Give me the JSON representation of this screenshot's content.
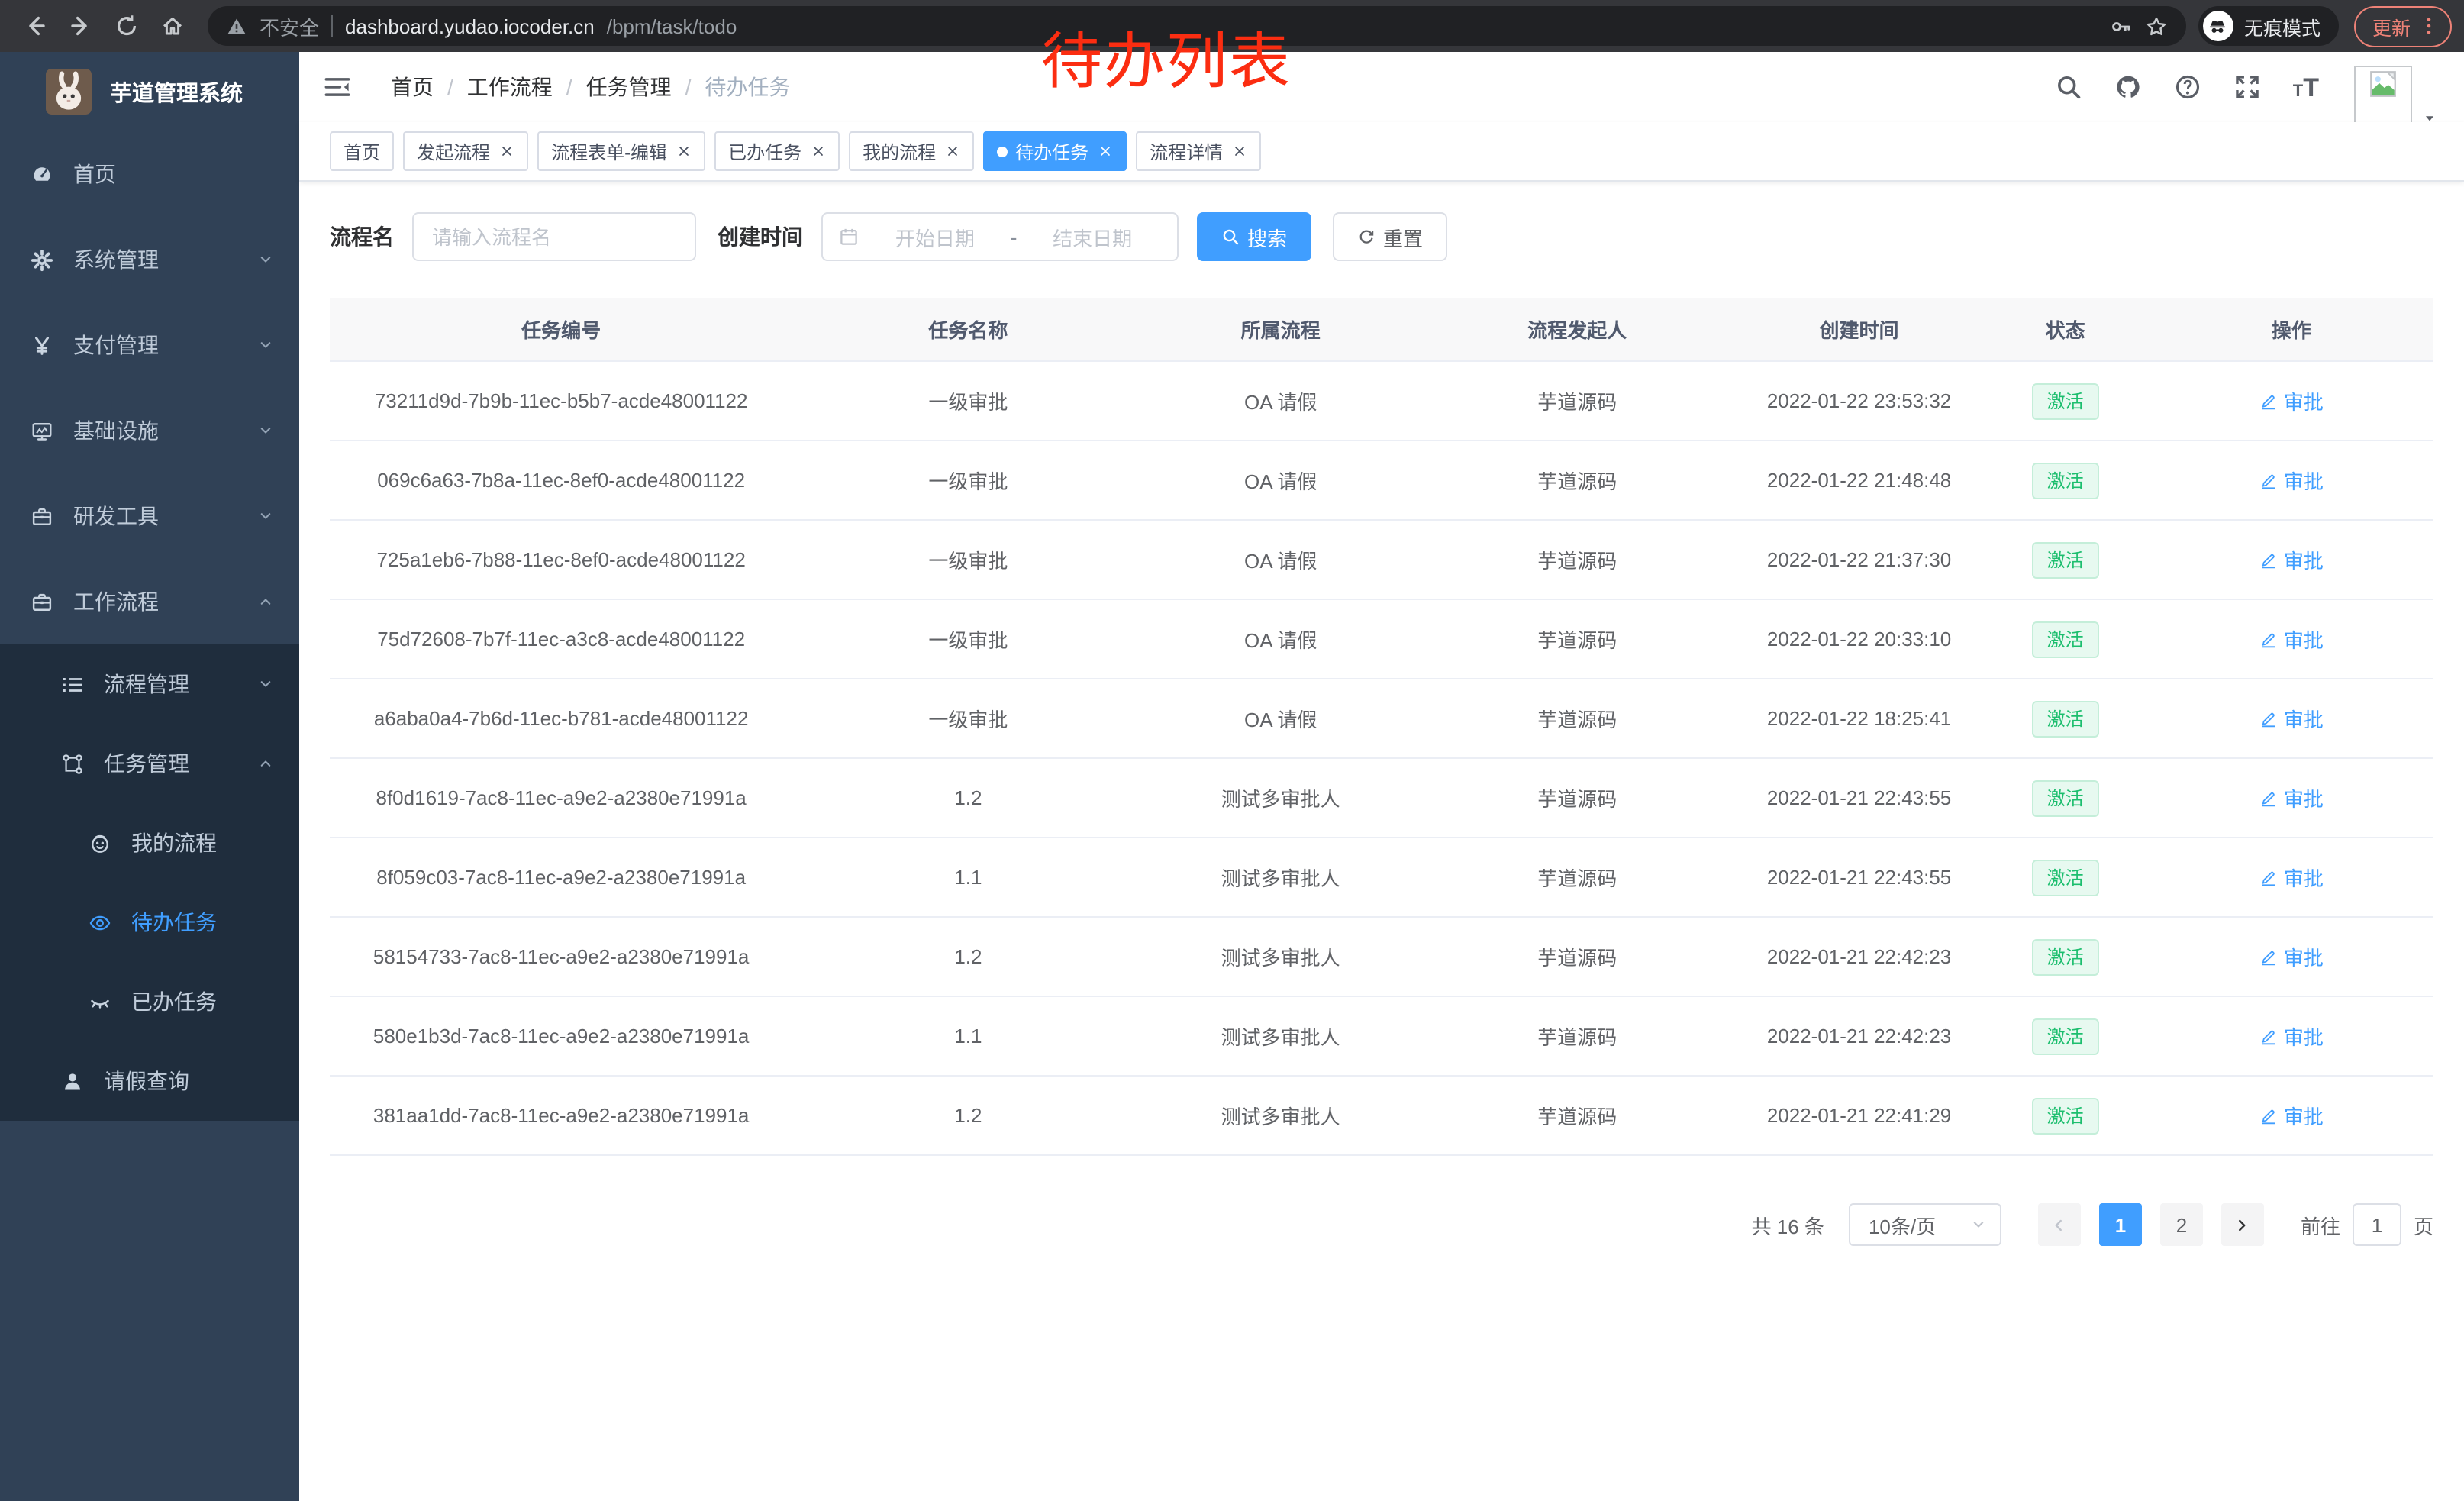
{
  "browser": {
    "security_label": "不安全",
    "url_host": "dashboard.yudao.iocoder.cn",
    "url_path": "/bpm/task/todo",
    "incognito_label": "无痕模式",
    "update_label": "更新"
  },
  "annotation": {
    "text": "待办列表",
    "color": "#fb2d11"
  },
  "sidebar": {
    "title": "芋道管理系统",
    "menu": [
      {
        "label": "首页",
        "icon": "dashboard",
        "chevron": ""
      },
      {
        "label": "系统管理",
        "icon": "gear",
        "chevron": "down"
      },
      {
        "label": "支付管理",
        "icon": "yen",
        "chevron": "down"
      },
      {
        "label": "基础设施",
        "icon": "monitor",
        "chevron": "down"
      },
      {
        "label": "研发工具",
        "icon": "briefcase",
        "chevron": "down"
      },
      {
        "label": "工作流程",
        "icon": "briefcase",
        "chevron": "up"
      }
    ],
    "submenu": [
      {
        "label": "流程管理",
        "icon": "list",
        "level": 2,
        "chevron": "down",
        "active": false
      },
      {
        "label": "任务管理",
        "icon": "flow",
        "level": 2,
        "chevron": "up",
        "active": false
      },
      {
        "label": "我的流程",
        "icon": "face",
        "level": 3,
        "chevron": "",
        "active": false
      },
      {
        "label": "待办任务",
        "icon": "eye",
        "level": 3,
        "chevron": "",
        "active": true
      },
      {
        "label": "已办任务",
        "icon": "eyeclosed",
        "level": 3,
        "chevron": "",
        "active": false
      },
      {
        "label": "请假查询",
        "icon": "user",
        "level": 2,
        "chevron": "",
        "active": false
      }
    ]
  },
  "header": {
    "breadcrumb": [
      {
        "label": "首页",
        "current": false
      },
      {
        "label": "工作流程",
        "current": false
      },
      {
        "label": "任务管理",
        "current": false
      },
      {
        "label": "待办任务",
        "current": true
      }
    ],
    "breadcrumb_separator": "/"
  },
  "tabs": [
    {
      "label": "首页",
      "closable": false,
      "active": false
    },
    {
      "label": "发起流程",
      "closable": true,
      "active": false
    },
    {
      "label": "流程表单-编辑",
      "closable": true,
      "active": false
    },
    {
      "label": "已办任务",
      "closable": true,
      "active": false
    },
    {
      "label": "我的流程",
      "closable": true,
      "active": false
    },
    {
      "label": "待办任务",
      "closable": true,
      "active": true
    },
    {
      "label": "流程详情",
      "closable": true,
      "active": false
    }
  ],
  "filters": {
    "name_label": "流程名",
    "name_placeholder": "请输入流程名",
    "time_label": "创建时间",
    "start_placeholder": "开始日期",
    "separator": "-",
    "end_placeholder": "结束日期",
    "search_label": "搜索",
    "reset_label": "重置"
  },
  "table": {
    "columns": [
      "任务编号",
      "任务名称",
      "所属流程",
      "流程发起人",
      "创建时间",
      "状态",
      "操作"
    ],
    "rows": [
      {
        "id": "73211d9d-7b9b-11ec-b5b7-acde48001122",
        "name": "一级审批",
        "process": "OA 请假",
        "starter": "芋道源码",
        "time": "2022-01-22 23:53:32",
        "status": "激活",
        "action": "审批"
      },
      {
        "id": "069c6a63-7b8a-11ec-8ef0-acde48001122",
        "name": "一级审批",
        "process": "OA 请假",
        "starter": "芋道源码",
        "time": "2022-01-22 21:48:48",
        "status": "激活",
        "action": "审批"
      },
      {
        "id": "725a1eb6-7b88-11ec-8ef0-acde48001122",
        "name": "一级审批",
        "process": "OA 请假",
        "starter": "芋道源码",
        "time": "2022-01-22 21:37:30",
        "status": "激活",
        "action": "审批"
      },
      {
        "id": "75d72608-7b7f-11ec-a3c8-acde48001122",
        "name": "一级审批",
        "process": "OA 请假",
        "starter": "芋道源码",
        "time": "2022-01-22 20:33:10",
        "status": "激活",
        "action": "审批"
      },
      {
        "id": "a6aba0a4-7b6d-11ec-b781-acde48001122",
        "name": "一级审批",
        "process": "OA 请假",
        "starter": "芋道源码",
        "time": "2022-01-22 18:25:41",
        "status": "激活",
        "action": "审批"
      },
      {
        "id": "8f0d1619-7ac8-11ec-a9e2-a2380e71991a",
        "name": "1.2",
        "process": "测试多审批人",
        "starter": "芋道源码",
        "time": "2022-01-21 22:43:55",
        "status": "激活",
        "action": "审批"
      },
      {
        "id": "8f059c03-7ac8-11ec-a9e2-a2380e71991a",
        "name": "1.1",
        "process": "测试多审批人",
        "starter": "芋道源码",
        "time": "2022-01-21 22:43:55",
        "status": "激活",
        "action": "审批"
      },
      {
        "id": "58154733-7ac8-11ec-a9e2-a2380e71991a",
        "name": "1.2",
        "process": "测试多审批人",
        "starter": "芋道源码",
        "time": "2022-01-21 22:42:23",
        "status": "激活",
        "action": "审批"
      },
      {
        "id": "580e1b3d-7ac8-11ec-a9e2-a2380e71991a",
        "name": "1.1",
        "process": "测试多审批人",
        "starter": "芋道源码",
        "time": "2022-01-21 22:42:23",
        "status": "激活",
        "action": "审批"
      },
      {
        "id": "381aa1dd-7ac8-11ec-a9e2-a2380e71991a",
        "name": "1.2",
        "process": "测试多审批人",
        "starter": "芋道源码",
        "time": "2022-01-21 22:41:29",
        "status": "激活",
        "action": "审批"
      }
    ]
  },
  "pagination": {
    "total_label": "共 16 条",
    "page_size_label": "10条/页",
    "pages": [
      "1",
      "2"
    ],
    "active_page": "1",
    "goto_label": "前往",
    "goto_value": "1",
    "unit_label": "页"
  },
  "colors": {
    "primary": "#409eff",
    "success": "#1cbe6e",
    "sidebar_bg": "#304156",
    "submenu_bg": "#1f2d3d",
    "annotation_red": "#fb2d11"
  }
}
